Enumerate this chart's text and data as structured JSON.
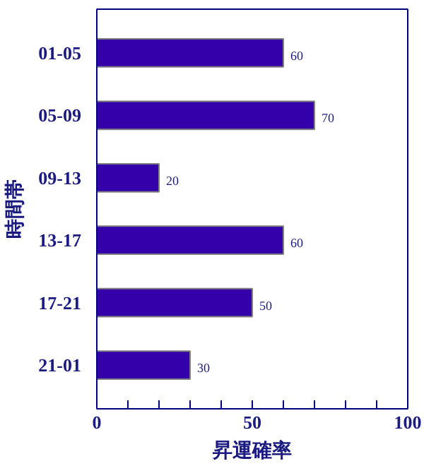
{
  "chart_data": {
    "type": "bar",
    "orientation": "horizontal",
    "xlabel": "昇運確率",
    "ylabel": "時間帯",
    "categories": [
      "01-05",
      "05-09",
      "09-13",
      "13-17",
      "17-21",
      "21-01"
    ],
    "values": [
      60,
      70,
      20,
      60,
      50,
      30
    ],
    "color": "#3300aa",
    "data_labels": true,
    "xlim": [
      0,
      100
    ],
    "xticks": [
      0,
      {
        "value": 10,
        "label": null
      },
      {
        "value": 20,
        "label": null
      },
      {
        "value": 30,
        "label": null
      },
      {
        "value": 40,
        "label": null
      },
      50,
      {
        "value": 60,
        "label": null
      },
      {
        "value": 70,
        "label": null
      },
      {
        "value": 80,
        "label": null
      },
      {
        "value": 90,
        "label": null
      },
      100
    ],
    "grid": false
  }
}
